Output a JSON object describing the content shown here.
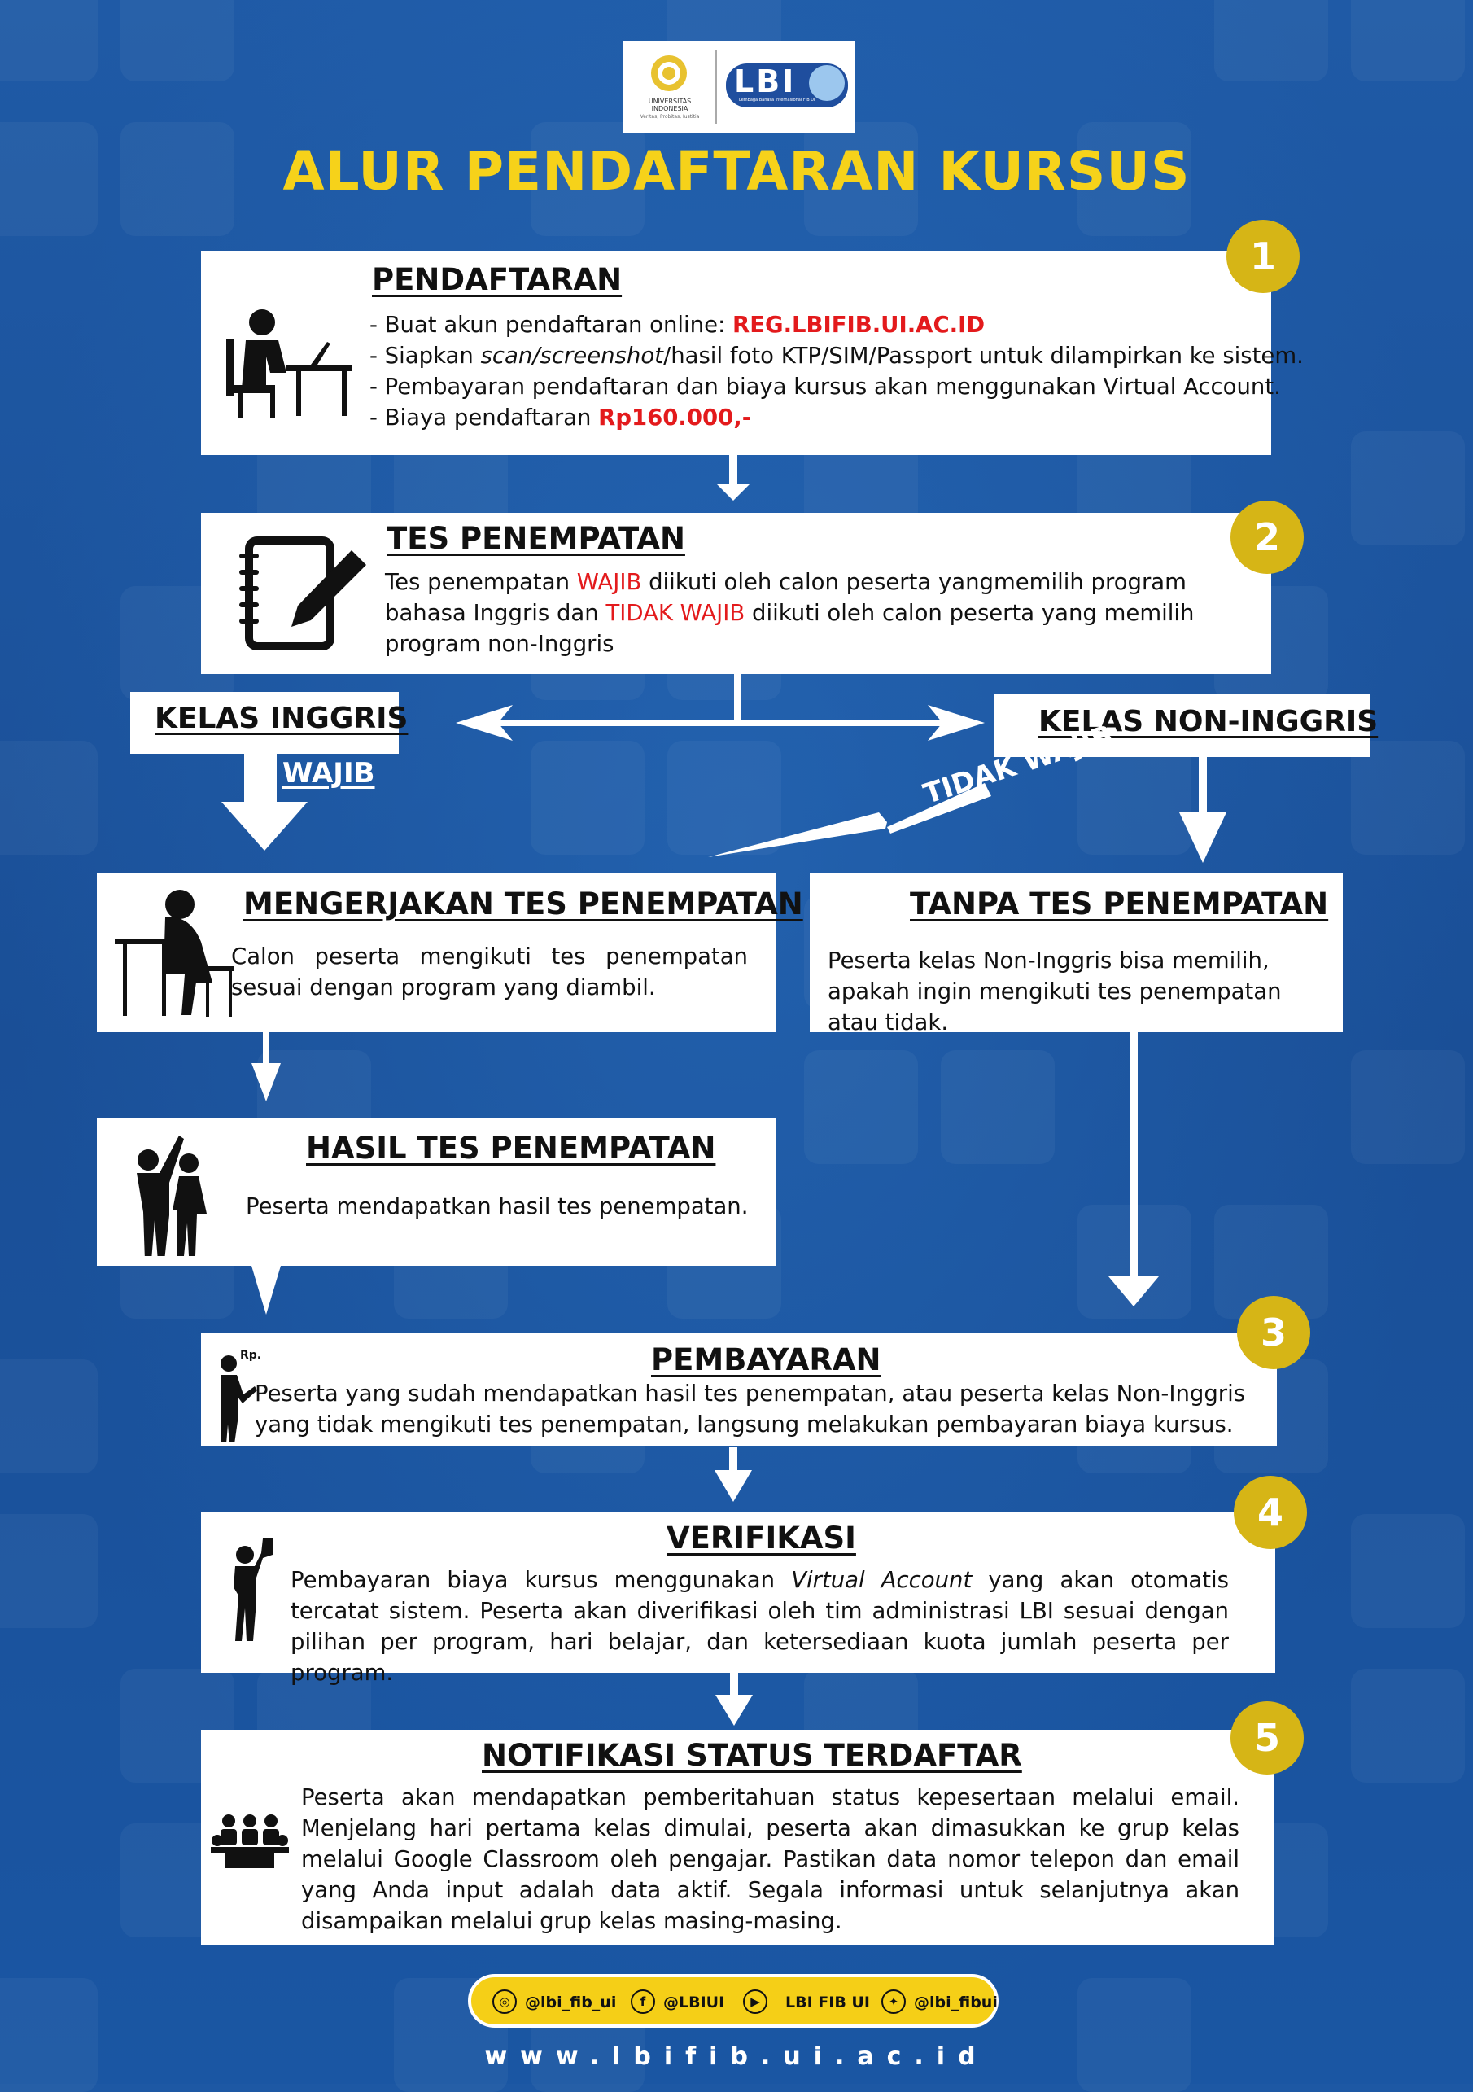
{
  "title": "ALUR PENDAFTARAN KURSUS",
  "logo": {
    "left_text": "UNIVERSITAS INDONESIA",
    "left_motto": "Veritas, Probitas, Iustitia",
    "right_text": "LBI",
    "right_sub": "Lembaga Bahasa Internasional FIB UI"
  },
  "steps": {
    "s1": {
      "number": "1",
      "heading": "PENDAFTARAN",
      "line1_prefix": "- Buat akun pendaftaran online: ",
      "line1_link": "REG.LBIFIB.UI.AC.ID",
      "line2_a": "- Siapkan ",
      "line2_italic": "scan/screenshot",
      "line2_b": "/hasil foto KTP/SIM/Passport untuk dilampirkan ke sistem.",
      "line3": "- Pembayaran pendaftaran dan biaya kursus akan menggunakan Virtual Account.",
      "line4_prefix": "- Biaya pendaftaran ",
      "line4_amount": "Rp160.000,-"
    },
    "s2": {
      "number": "2",
      "heading": "TES PENEMPATAN",
      "t1": "Tes penempatan ",
      "t2": "WAJIB",
      "t3": " diikuti oleh calon peserta yangmemilih program bahasa Inggris dan ",
      "t4": "TIDAK WAJIB",
      "t5": " diikuti oleh calon peserta yang memilih program non-Inggris"
    },
    "kelas_inggris": "KELAS INGGRIS",
    "kelas_non_inggris": "KELAS NON-INGGRIS",
    "wajib": "WAJIB",
    "tidak_wajib": "TIDAK WAJIB",
    "mengerjakan": {
      "heading": "MENGERJAKAN TES PENEMPATAN",
      "text": "Calon peserta mengikuti tes penempatan sesuai dengan program yang diambil."
    },
    "tanpa": {
      "heading": "TANPA TES PENEMPATAN",
      "text": "Peserta kelas Non-Inggris bisa memilih, apakah ingin mengikuti tes penempatan atau tidak."
    },
    "hasil": {
      "heading": "HASIL TES PENEMPATAN",
      "text": "Peserta mendapatkan hasil tes penempatan."
    },
    "s3": {
      "number": "3",
      "heading": "PEMBAYARAN",
      "icon_label": "Rp.",
      "text": "Peserta yang sudah mendapatkan hasil tes penempatan, atau peserta kelas Non-Inggris yang tidak mengikuti tes penempatan, langsung melakukan pembayaran biaya kursus."
    },
    "s4": {
      "number": "4",
      "heading": "VERIFIKASI",
      "t1": "Pembayaran biaya kursus menggunakan ",
      "t2": "Virtual Account",
      "t3": " yang akan otomatis tercatat sistem. Peserta akan diverifikasi oleh tim administrasi LBI sesuai dengan pilihan per program, hari belajar, dan ketersediaan kuota jumlah peserta per program."
    },
    "s5": {
      "number": "5",
      "heading": "NOTIFIKASI STATUS TERDAFTAR",
      "text": "Peserta akan mendapatkan pemberitahuan status kepesertaan melalui email. Menjelang hari pertama kelas dimulai, peserta akan dimasukkan ke grup kelas melalui Google Classroom oleh pengajar. Pastikan data nomor telepon dan email yang Anda input adalah data aktif. Segala informasi untuk selanjutnya akan disampaikan melalui grup kelas masing-masing."
    }
  },
  "social": [
    {
      "icon": "instagram-icon",
      "glyph": "◎",
      "label": "@lbi_fib_ui"
    },
    {
      "icon": "facebook-icon",
      "glyph": "f",
      "label": "@LBIUI"
    },
    {
      "icon": "youtube-icon",
      "glyph": "▶",
      "label": "LBI FIB UI"
    },
    {
      "icon": "twitter-icon",
      "glyph": "✦",
      "label": "@lbi_fibui"
    }
  ],
  "website": "www.lbifib.ui.ac.id",
  "colors": {
    "background": "#1d58a4",
    "accent_yellow": "#d6b516",
    "title_yellow": "#f6d21a",
    "highlight_red": "#e31a1c"
  }
}
